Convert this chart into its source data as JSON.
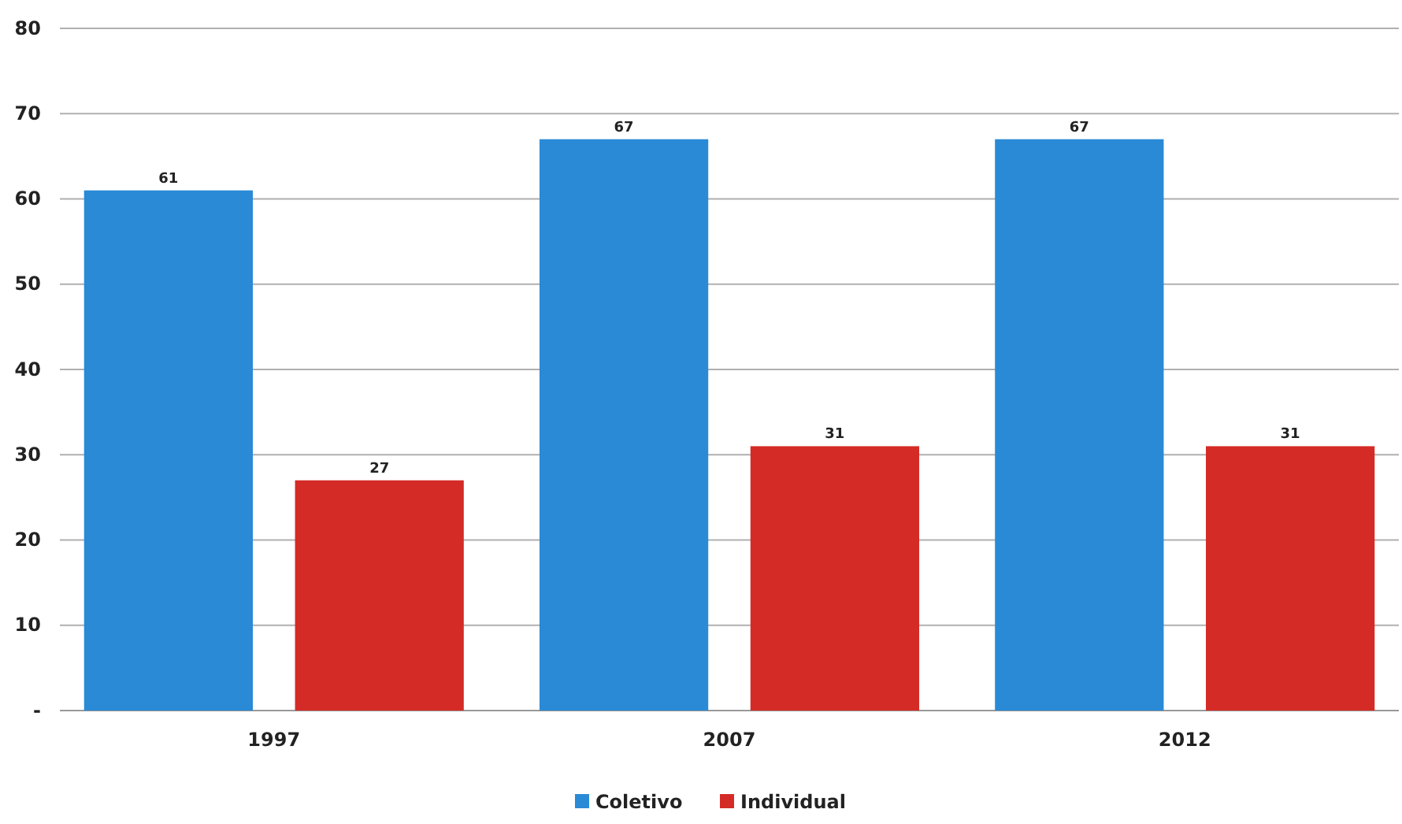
{
  "chart_data": {
    "type": "bar",
    "categories": [
      "1997",
      "2007",
      "2012"
    ],
    "series": [
      {
        "name": "Coletivo",
        "color": "#2a8ad6",
        "values": [
          61,
          67,
          67
        ]
      },
      {
        "name": "Individual",
        "color": "#d42b26",
        "values": [
          27,
          31,
          31
        ]
      }
    ],
    "ylim": [
      0,
      80
    ],
    "yticks": [
      {
        "value": 0,
        "label": "-"
      },
      10,
      20,
      30,
      40,
      50,
      60,
      70,
      80
    ],
    "grid": "y",
    "legend": "bottom",
    "data_labels": true
  }
}
